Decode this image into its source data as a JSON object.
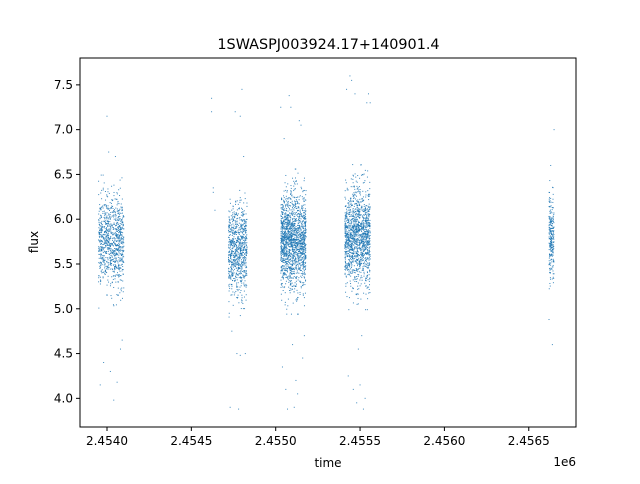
{
  "chart_data": {
    "type": "scatter",
    "title": "1SWASPJ003924.17+140901.4",
    "xlabel": "time",
    "ylabel": "flux",
    "x_offset_label": "1e6",
    "xlim": [
      2.45384,
      2.45678
    ],
    "ylim": [
      3.68,
      7.8
    ],
    "x_ticks": [
      2.454,
      2.4545,
      2.455,
      2.4555,
      2.456,
      2.4565
    ],
    "x_tick_labels": [
      "2.4540",
      "2.4545",
      "2.4550",
      "2.4555",
      "2.4560",
      "2.4565"
    ],
    "y_ticks": [
      4.0,
      4.5,
      5.0,
      5.5,
      6.0,
      6.5,
      7.0,
      7.5
    ],
    "y_tick_labels": [
      "4.0",
      "4.5",
      "5.0",
      "5.5",
      "6.0",
      "6.5",
      "7.0",
      "7.5"
    ],
    "grid": false,
    "point_color": "#1f77b4",
    "series": [
      {
        "clusters": [
          {
            "x_range": [
              2.45395,
              2.4541
            ],
            "center": 5.75,
            "spread": 0.55,
            "n": 900
          },
          {
            "x_range": [
              2.45472,
              2.45483
            ],
            "center": 5.65,
            "spread": 0.55,
            "n": 800
          },
          {
            "x_range": [
              2.45503,
              2.45518
            ],
            "center": 5.75,
            "spread": 0.6,
            "n": 1600
          },
          {
            "x_range": [
              2.45541,
              2.45556
            ],
            "center": 5.8,
            "spread": 0.6,
            "n": 1400
          },
          {
            "x_range": [
              2.45662,
              2.45665
            ],
            "center": 5.8,
            "spread": 0.5,
            "n": 250
          }
        ],
        "outliers": [
          [
            2.45396,
            4.15
          ],
          [
            2.45398,
            4.4
          ],
          [
            2.454,
            7.15
          ],
          [
            2.45402,
            4.3
          ],
          [
            2.45404,
            3.98
          ],
          [
            2.45406,
            4.18
          ],
          [
            2.45408,
            4.55
          ],
          [
            2.45409,
            4.65
          ],
          [
            2.45405,
            6.7
          ],
          [
            2.45401,
            6.75
          ],
          [
            2.45462,
            7.35
          ],
          [
            2.45462,
            7.2
          ],
          [
            2.45463,
            6.35
          ],
          [
            2.45463,
            6.3
          ],
          [
            2.45464,
            6.1
          ],
          [
            2.45473,
            3.9
          ],
          [
            2.45477,
            4.5
          ],
          [
            2.45478,
            3.88
          ],
          [
            2.45479,
            4.48
          ],
          [
            2.4548,
            7.45
          ],
          [
            2.45479,
            7.15
          ],
          [
            2.45476,
            7.2
          ],
          [
            2.45481,
            6.7
          ],
          [
            2.45474,
            4.75
          ],
          [
            2.45482,
            4.5
          ],
          [
            2.45504,
            4.35
          ],
          [
            2.45506,
            4.1
          ],
          [
            2.45507,
            3.88
          ],
          [
            2.45508,
            7.38
          ],
          [
            2.45509,
            7.25
          ],
          [
            2.45511,
            3.9
          ],
          [
            2.45512,
            4.2
          ],
          [
            2.45513,
            4.05
          ],
          [
            2.45514,
            7.1
          ],
          [
            2.45515,
            7.05
          ],
          [
            2.45516,
            4.45
          ],
          [
            2.4551,
            4.6
          ],
          [
            2.45505,
            6.9
          ],
          [
            2.45503,
            7.25
          ],
          [
            2.45517,
            4.7
          ],
          [
            2.45542,
            7.45
          ],
          [
            2.45544,
            7.6
          ],
          [
            2.45545,
            7.55
          ],
          [
            2.45547,
            7.4
          ],
          [
            2.45543,
            4.25
          ],
          [
            2.45546,
            4.1
          ],
          [
            2.45548,
            3.95
          ],
          [
            2.4555,
            4.15
          ],
          [
            2.45552,
            3.88
          ],
          [
            2.45553,
            4.0
          ],
          [
            2.45554,
            7.3
          ],
          [
            2.45555,
            7.4
          ],
          [
            2.45556,
            7.3
          ],
          [
            2.45549,
            4.55
          ],
          [
            2.45551,
            4.7
          ],
          [
            2.45662,
            4.88
          ],
          [
            2.45664,
            4.6
          ],
          [
            2.45665,
            7.0
          ],
          [
            2.45663,
            6.6
          ]
        ]
      }
    ]
  }
}
